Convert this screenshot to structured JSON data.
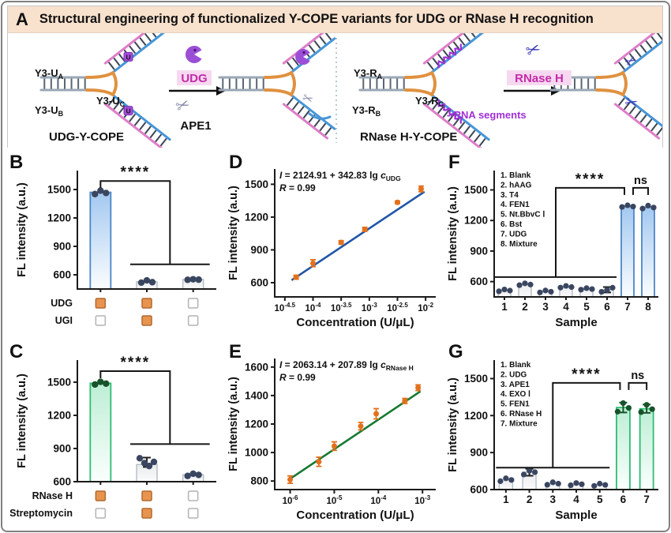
{
  "colors": {
    "header_bg": "#f8e1cd",
    "axis": "#1a1a1a",
    "bar_blue_stroke": "#4a86c8",
    "bar_blue_top": "#a3c8f0",
    "bar_blue_bottom": "#fbfdff",
    "bar_green_stroke": "#2dbd72",
    "bar_green_top": "#bdeed5",
    "bar_green_bottom": "#fbfffd",
    "bar_gray_stroke": "#b5bcc4",
    "bar_gray_top": "#e9ebed",
    "bar_gray_bottom": "#fbfbfc",
    "dot_navy": "#3a4660",
    "dot_green": "#17522b",
    "point_orange": "#e2711d",
    "line_blue": "#2056a8",
    "line_green": "#157a33",
    "checkbox_fill": "#e8944e",
    "checkbox_border": "#b06a30",
    "checkbox_empty_border": "#b3b3b3",
    "stem_gray": "#9aa7b6",
    "rung": "#5a6675",
    "junction_orange": "#e0913f",
    "arm_blue": "#4796d8",
    "arm_pink": "#df7ec9",
    "enzyme_purple": "#9b4fd6",
    "magenta": "#c42ba8",
    "rna_purple": "#a02fd6",
    "scissors_navy": "#3d3db8",
    "scissors_gray": "#8b8fae",
    "highlight_pink": "#f6d9f0"
  },
  "icons": {
    "scissors": "✂",
    "u_mark": "U"
  },
  "panelA": {
    "label": "A",
    "title": "Structural engineering of functionalized Y-COPE variants for UDG or RNase H recognition",
    "left": {
      "strand_a": {
        "base": "Y3-U",
        "sub": "A"
      },
      "strand_c": {
        "base": "Y3-U",
        "sub": "C"
      },
      "strand_b": {
        "base": "Y3-U",
        "sub": "B"
      },
      "enzyme_top": "UDG",
      "enzyme_bottom": "APE1",
      "caption": "UDG-Y-COPE"
    },
    "right": {
      "strand_a": {
        "base": "Y3-R",
        "sub": "A"
      },
      "strand_c": {
        "base": "Y3-R",
        "sub": "C"
      },
      "strand_b": {
        "base": "Y3-R",
        "sub": "B"
      },
      "enzyme_top": "RNase H",
      "rna_note": "--RNA segments",
      "caption": "RNase H-Y-COPE"
    }
  },
  "chart_data": [
    {
      "panel": "B",
      "type": "bar",
      "ylabel": "FL intensity (a.u.)",
      "yticks": [
        600,
        900,
        1200,
        1500
      ],
      "ylim": [
        450,
        1700
      ],
      "bars": [
        {
          "value": 1470,
          "style": "blue",
          "dots": [
            1452,
            1488,
            1463
          ]
        },
        {
          "value": 527,
          "style": "gray",
          "dots": [
            517,
            541,
            522
          ]
        },
        {
          "value": 551,
          "style": "gray",
          "dots": [
            547,
            553,
            549
          ]
        }
      ],
      "significance": {
        "label": "****",
        "kind": "drop",
        "from": 0,
        "group": [
          1,
          2
        ],
        "top": 1590,
        "low": 710
      },
      "condition_rows": [
        {
          "label": "UDG",
          "states": [
            true,
            true,
            false
          ]
        },
        {
          "label": "UGI",
          "states": [
            false,
            true,
            false
          ]
        }
      ]
    },
    {
      "panel": "C",
      "type": "bar",
      "ylabel": "FL intensity (a.u.)",
      "yticks": [
        600,
        900,
        1200,
        1500
      ],
      "ylim": [
        600,
        1700
      ],
      "bars": [
        {
          "value": 1490,
          "style": "green",
          "dots": [
            1479,
            1503,
            1487
          ]
        },
        {
          "value": 755,
          "style": "gray",
          "dots": [
            812,
            768,
            742,
            779
          ],
          "err": [
            733,
            818
          ]
        },
        {
          "value": 663,
          "style": "gray",
          "dots": [
            652,
            672,
            661
          ]
        }
      ],
      "significance": {
        "label": "****",
        "kind": "drop",
        "from": 0,
        "group": [
          1,
          2
        ],
        "top": 1600,
        "low": 940
      },
      "condition_rows": [
        {
          "label": "RNase H",
          "states": [
            true,
            true,
            false
          ]
        },
        {
          "label": "Streptomycin",
          "states": [
            false,
            true,
            false
          ]
        }
      ]
    },
    {
      "panel": "D",
      "type": "scatter",
      "equation": {
        "lhs": "I",
        "mid": " = 2124.91 + 342.83 lg ",
        "var": "c",
        "sub": "UDG",
        "r": "R",
        "rval": " = 0.99"
      },
      "ylabel": "FL intensity (a.u.)",
      "yticks": [
        600,
        900,
        1200,
        1500
      ],
      "ylim": [
        470,
        1640
      ],
      "xlabel": "Concentration (U/μL)",
      "xticks": [
        -4.5,
        -4,
        -3.5,
        -3,
        -2.5,
        -2
      ],
      "xlim": [
        -4.68,
        -1.82
      ],
      "points": [
        {
          "x": -4.3,
          "y": 650,
          "e": 18
        },
        {
          "x": -4.0,
          "y": 778,
          "e": 32
        },
        {
          "x": -3.5,
          "y": 968,
          "e": 16
        },
        {
          "x": -3.08,
          "y": 1088,
          "e": 18
        },
        {
          "x": -2.5,
          "y": 1335,
          "e": 12
        },
        {
          "x": -2.08,
          "y": 1458,
          "e": 26
        }
      ],
      "fit": {
        "intercept": 2124.91,
        "slope": 342.83,
        "x1": -4.38,
        "x2": -2.02
      },
      "line": "blue"
    },
    {
      "panel": "E",
      "type": "scatter",
      "equation": {
        "lhs": "I",
        "mid": " = 2063.14 + 207.89 lg ",
        "var": "c",
        "sub": "RNase H",
        "r": "R",
        "rval": " = 0.99"
      },
      "ylabel": "FL intensity (a.u.)",
      "yticks": [
        800,
        1000,
        1200,
        1400,
        1600
      ],
      "ylim": [
        740,
        1660
      ],
      "xlabel": "Concentration (U/μL)",
      "xticks": [
        -6,
        -5,
        -4,
        -3
      ],
      "xlim": [
        -6.35,
        -2.7
      ],
      "points": [
        {
          "x": -6.0,
          "y": 810,
          "e": 26
        },
        {
          "x": -5.35,
          "y": 935,
          "e": 32
        },
        {
          "x": -5.0,
          "y": 1045,
          "e": 30
        },
        {
          "x": -4.4,
          "y": 1185,
          "e": 26
        },
        {
          "x": -4.05,
          "y": 1272,
          "e": 36
        },
        {
          "x": -3.4,
          "y": 1362,
          "e": 18
        },
        {
          "x": -3.1,
          "y": 1455,
          "e": 20
        }
      ],
      "fit": {
        "intercept": 2063.14,
        "slope": 207.89,
        "x1": -6.05,
        "x2": -3.05
      },
      "line": "green"
    },
    {
      "panel": "F",
      "type": "bar",
      "ylabel": "FL intensity (a.u.)",
      "yticks": [
        600,
        900,
        1200,
        1500
      ],
      "ylim": [
        450,
        1690
      ],
      "xlabel": "Sample",
      "xnums": [
        "1",
        "2",
        "3",
        "4",
        "5",
        "6",
        "7",
        "8"
      ],
      "legend": [
        "1. Blank",
        "2. hAAG",
        "3. T4",
        "4. FEN1",
        "5. Nt.BbvC Ⅰ",
        "6. Bst",
        "7. UDG",
        "8. Mixture"
      ],
      "bars": [
        {
          "value": 515,
          "style": "gray",
          "dots": [
            505,
            523,
            512
          ]
        },
        {
          "value": 575,
          "style": "gray",
          "dots": [
            565,
            583,
            571
          ]
        },
        {
          "value": 505,
          "style": "gray",
          "dots": [
            494,
            513,
            501
          ]
        },
        {
          "value": 550,
          "style": "gray",
          "dots": [
            541,
            558,
            547
          ]
        },
        {
          "value": 530,
          "style": "gray",
          "dots": [
            521,
            536,
            527
          ]
        },
        {
          "value": 520,
          "style": "gray",
          "dots": [
            500,
            517,
            540
          ],
          "err": [
            494,
            547
          ]
        },
        {
          "value": 1340,
          "style": "blue",
          "dots": [
            1333,
            1349,
            1337
          ]
        },
        {
          "value": 1330,
          "style": "blue",
          "dots": [
            1317,
            1346,
            1327
          ]
        }
      ],
      "significance": {
        "label": "****",
        "kind": "rise",
        "group": [
          0,
          5
        ],
        "target": 6,
        "top": 1520,
        "low": 645,
        "ns": {
          "label": "ns",
          "between": [
            6,
            7
          ],
          "y": 1520
        }
      }
    },
    {
      "panel": "G",
      "type": "bar",
      "ylabel": "FL intensity (a.u.)",
      "yticks": [
        600,
        900,
        1200,
        1500
      ],
      "ylim": [
        600,
        1650
      ],
      "xlabel": "Sample",
      "xnums": [
        "1",
        "2",
        "3",
        "4",
        "5",
        "6",
        "7"
      ],
      "legend": [
        "1. Blank",
        "2. UDG",
        "3. APE1",
        "4. EXO Ⅰ",
        "5. FEN1",
        "6. RNase H",
        "7. Mixture"
      ],
      "bars": [
        {
          "value": 680,
          "style": "gray",
          "dots": [
            668,
            691,
            678
          ]
        },
        {
          "value": 742,
          "style": "gray",
          "dots": [
            722,
            753,
            741
          ],
          "err": [
            712,
            768
          ]
        },
        {
          "value": 650,
          "style": "gray",
          "dots": [
            639,
            659,
            648
          ]
        },
        {
          "value": 645,
          "style": "gray",
          "dots": [
            635,
            653,
            643
          ]
        },
        {
          "value": 640,
          "style": "gray",
          "dots": [
            630,
            648,
            638
          ]
        },
        {
          "value": 1265,
          "style": "green",
          "dots": [
            1232,
            1301,
            1262
          ],
          "err": [
            1225,
            1305
          ]
        },
        {
          "value": 1255,
          "style": "green",
          "dots": [
            1228,
            1287,
            1252
          ],
          "err": [
            1222,
            1290
          ]
        }
      ],
      "significance": {
        "label": "****",
        "kind": "rise",
        "group": [
          0,
          4
        ],
        "target": 5,
        "top": 1465,
        "low": 778,
        "ns": {
          "label": "ns",
          "between": [
            5,
            6
          ],
          "y": 1465
        }
      }
    }
  ]
}
